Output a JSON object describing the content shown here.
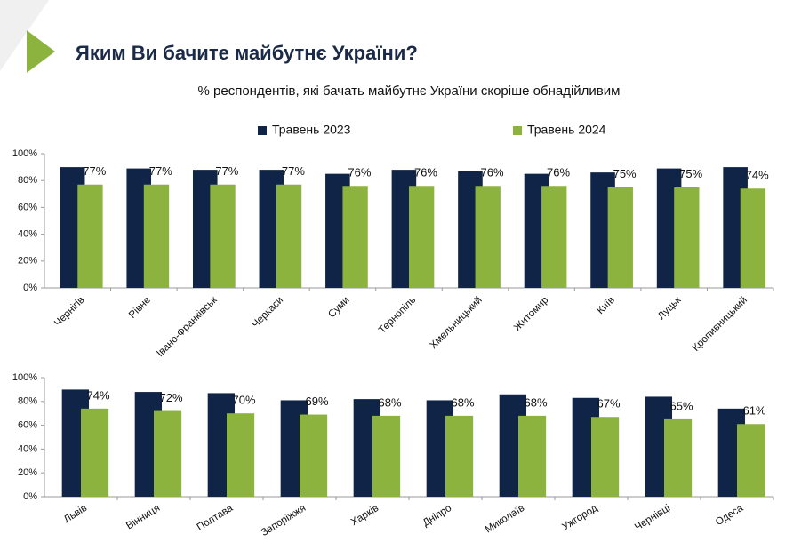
{
  "header": {
    "title": "Яким Ви бачите майбутнє України?",
    "subtitle": "% респондентів, які бачать майбутнє України скоріше обнадійливим"
  },
  "chart_data": [
    {
      "type": "bar",
      "categories": [
        "Чернігів",
        "Рівне",
        "Івано-Франківськ",
        "Черкаси",
        "Суми",
        "Тернопіль",
        "Хмельницький",
        "Житомир",
        "Київ",
        "Луцьк",
        "Кропивницький"
      ],
      "series": [
        {
          "name": "Травень 2023",
          "color": "#0f2446",
          "values": [
            90,
            89,
            88,
            88,
            85,
            88,
            87,
            85,
            86,
            89,
            90
          ]
        },
        {
          "name": "Травень 2024",
          "color": "#8db33f",
          "values": [
            77,
            77,
            77,
            77,
            76,
            76,
            76,
            76,
            75,
            75,
            74
          ],
          "value_labels": [
            "77%",
            "77%",
            "77%",
            "77%",
            "76%",
            "76%",
            "76%",
            "76%",
            "75%",
            "75%",
            "74%"
          ]
        }
      ],
      "ylim": [
        0,
        100
      ],
      "yticks": [
        {
          "value": 0,
          "label": "0%"
        },
        {
          "value": 20,
          "label": "20%"
        },
        {
          "value": 40,
          "label": "40%"
        },
        {
          "value": 60,
          "label": "60%"
        },
        {
          "value": 80,
          "label": "80%"
        },
        {
          "value": 100,
          "label": "100%"
        }
      ],
      "grid": false,
      "legend": "top"
    },
    {
      "type": "bar",
      "categories": [
        "Львів",
        "Вінниця",
        "Полтава",
        "Запоріжжя",
        "Харків",
        "Дніпро",
        "Миколаїв",
        "Ужгород",
        "Чернівці",
        "Одеса"
      ],
      "series": [
        {
          "color": "#0f2446",
          "values": [
            90,
            88,
            87,
            81,
            82,
            81,
            86,
            83,
            84,
            74
          ]
        },
        {
          "color": "#8db33f",
          "values": [
            74,
            72,
            70,
            69,
            68,
            68,
            68,
            67,
            65,
            61
          ],
          "value_labels": [
            "74%",
            "72%",
            "70%",
            "69%",
            "68%",
            "68%",
            "68%",
            "67%",
            "65%",
            "61%"
          ]
        }
      ],
      "ylim": [
        0,
        100
      ],
      "yticks": [
        {
          "value": 0,
          "label": "0%"
        },
        {
          "value": 20,
          "label": "20%"
        },
        {
          "value": 40,
          "label": "40%"
        },
        {
          "value": 60,
          "label": "60%"
        },
        {
          "value": 80,
          "label": "80%"
        },
        {
          "value": 100,
          "label": "100%"
        }
      ],
      "grid": false
    }
  ]
}
